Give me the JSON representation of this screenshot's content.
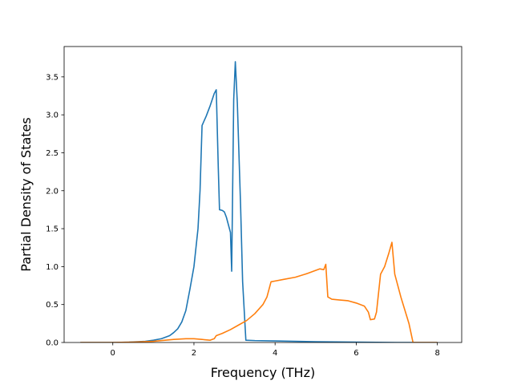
{
  "chart_data": {
    "type": "line",
    "title": "",
    "xlabel": "Frequency (THz)",
    "ylabel": "Partial Density of States",
    "xlim": [
      -1.2,
      8.6
    ],
    "ylim": [
      0,
      3.9
    ],
    "xticks": [
      0,
      2,
      4,
      6,
      8
    ],
    "xtick_labels": [
      "0",
      "2",
      "4",
      "6",
      "8"
    ],
    "yticks": [
      0,
      0.5,
      1.0,
      1.5,
      2.0,
      2.5,
      3.0,
      3.5
    ],
    "ytick_labels": [
      "0.0",
      "0.5",
      "1.0",
      "1.5",
      "2.0",
      "2.5",
      "3.0",
      "3.5"
    ],
    "grid": false,
    "legend": "none",
    "series": [
      {
        "color": "#1f77b4",
        "points": [
          [
            -0.8,
            0.0
          ],
          [
            0.0,
            0.0
          ],
          [
            0.4,
            0.005
          ],
          [
            0.8,
            0.015
          ],
          [
            1.0,
            0.03
          ],
          [
            1.2,
            0.05
          ],
          [
            1.4,
            0.09
          ],
          [
            1.5,
            0.13
          ],
          [
            1.6,
            0.18
          ],
          [
            1.7,
            0.27
          ],
          [
            1.8,
            0.42
          ],
          [
            1.9,
            0.7
          ],
          [
            2.0,
            1.0
          ],
          [
            2.1,
            1.5
          ],
          [
            2.15,
            2.0
          ],
          [
            2.2,
            2.86
          ],
          [
            2.3,
            2.98
          ],
          [
            2.4,
            3.12
          ],
          [
            2.5,
            3.28
          ],
          [
            2.55,
            3.33
          ],
          [
            2.6,
            2.3
          ],
          [
            2.63,
            1.75
          ],
          [
            2.7,
            1.74
          ],
          [
            2.75,
            1.72
          ],
          [
            2.8,
            1.65
          ],
          [
            2.9,
            1.45
          ],
          [
            2.93,
            0.94
          ],
          [
            2.98,
            3.2
          ],
          [
            3.02,
            3.7
          ],
          [
            3.07,
            3.15
          ],
          [
            3.15,
            1.8
          ],
          [
            3.2,
            0.8
          ],
          [
            3.28,
            0.03
          ],
          [
            3.5,
            0.025
          ],
          [
            4.0,
            0.02
          ],
          [
            5.0,
            0.01
          ],
          [
            6.0,
            0.005
          ],
          [
            7.0,
            0.0
          ],
          [
            8.0,
            0.0
          ]
        ]
      },
      {
        "color": "#ff7f0e",
        "points": [
          [
            -0.8,
            0.0
          ],
          [
            0.0,
            0.0
          ],
          [
            0.5,
            0.005
          ],
          [
            1.0,
            0.015
          ],
          [
            1.5,
            0.04
          ],
          [
            1.8,
            0.05
          ],
          [
            2.0,
            0.05
          ],
          [
            2.2,
            0.04
          ],
          [
            2.4,
            0.03
          ],
          [
            2.5,
            0.05
          ],
          [
            2.55,
            0.09
          ],
          [
            2.7,
            0.12
          ],
          [
            2.9,
            0.17
          ],
          [
            3.1,
            0.23
          ],
          [
            3.3,
            0.29
          ],
          [
            3.5,
            0.38
          ],
          [
            3.7,
            0.5
          ],
          [
            3.8,
            0.6
          ],
          [
            3.9,
            0.8
          ],
          [
            4.0,
            0.81
          ],
          [
            4.2,
            0.83
          ],
          [
            4.5,
            0.86
          ],
          [
            4.8,
            0.91
          ],
          [
            5.0,
            0.95
          ],
          [
            5.1,
            0.97
          ],
          [
            5.2,
            0.96
          ],
          [
            5.25,
            1.03
          ],
          [
            5.3,
            0.6
          ],
          [
            5.4,
            0.57
          ],
          [
            5.6,
            0.56
          ],
          [
            5.8,
            0.55
          ],
          [
            6.0,
            0.52
          ],
          [
            6.2,
            0.48
          ],
          [
            6.3,
            0.4
          ],
          [
            6.35,
            0.3
          ],
          [
            6.45,
            0.31
          ],
          [
            6.5,
            0.4
          ],
          [
            6.6,
            0.9
          ],
          [
            6.7,
            1.0
          ],
          [
            6.8,
            1.17
          ],
          [
            6.88,
            1.32
          ],
          [
            6.95,
            0.9
          ],
          [
            7.1,
            0.6
          ],
          [
            7.3,
            0.25
          ],
          [
            7.4,
            0.0
          ],
          [
            8.0,
            0.0
          ]
        ]
      }
    ]
  }
}
